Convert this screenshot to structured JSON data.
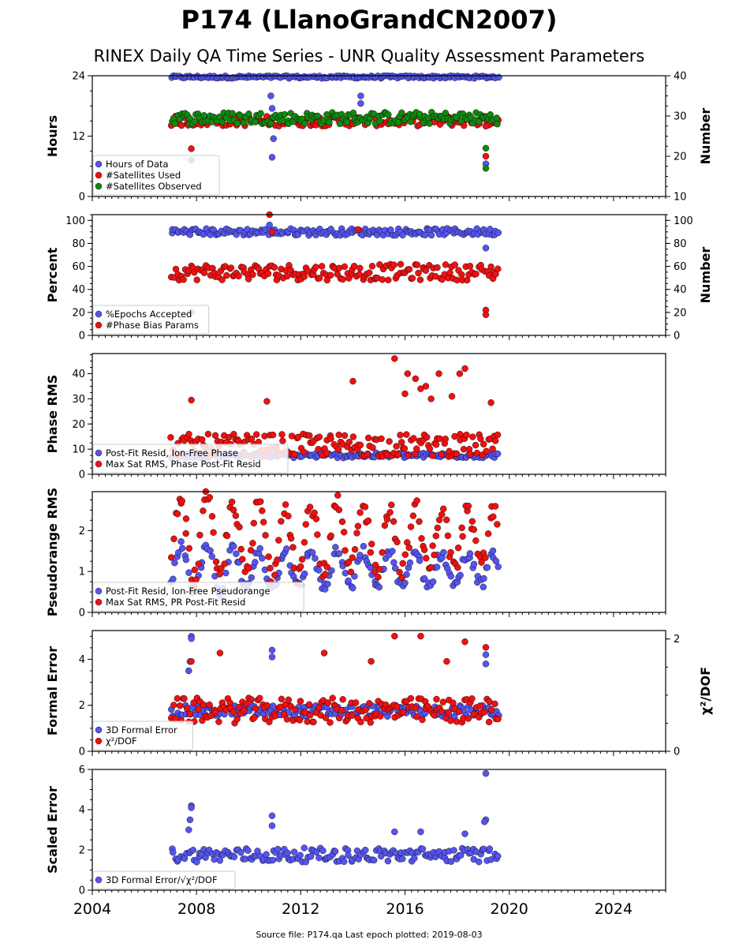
{
  "title": "P174 (LlanoGrandCN2007)",
  "subtitle": "RINEX Daily QA Time Series - UNR Quality Assessment Parameters",
  "footer": "Source file: P174.qa Last epoch plotted: 2019-08-03",
  "colors": {
    "blue": "#5555ee",
    "red": "#ee1111",
    "green": "#118811"
  },
  "chart_data": [
    {
      "type": "scatter",
      "ylabel": "Hours",
      "ylabel_right": "Number",
      "xlim": [
        2004,
        2026
      ],
      "ylim": [
        0,
        24
      ],
      "ylim_right": [
        10,
        40
      ],
      "yticks": [
        "0",
        "12",
        "24"
      ],
      "yticks_right": [
        "10",
        "20",
        "30",
        "40"
      ],
      "legend_location": "lower-left",
      "series": [
        {
          "name": "Hours of Data",
          "color": "blue",
          "axis": "left",
          "y_range": [
            23.5,
            24
          ],
          "outliers": [
            [
              2010.85,
              20
            ],
            [
              2010.9,
              17.5
            ],
            [
              2010.95,
              11.5
            ],
            [
              2010.9,
              7.8
            ],
            [
              2014.3,
              20
            ],
            [
              2014.3,
              18.5
            ],
            [
              2019.1,
              6.5
            ]
          ]
        },
        {
          "name": "#Satellites Used",
          "color": "red",
          "axis": "left",
          "y_range": [
            14,
            16
          ],
          "outliers": [
            [
              2007.8,
              9.5
            ],
            [
              2019.1,
              14
            ],
            [
              2019.1,
              8
            ]
          ]
        },
        {
          "name": "#Satellites Observed",
          "color": "green",
          "axis": "right",
          "y_range": [
            28,
            31
          ],
          "outliers": [
            [
              2007.8,
              19
            ],
            [
              2019.1,
              22
            ],
            [
              2019.1,
              17
            ]
          ]
        }
      ]
    },
    {
      "type": "scatter",
      "ylabel": "Percent",
      "ylabel_right": "Number",
      "xlim": [
        2004,
        2026
      ],
      "ylim": [
        0,
        105
      ],
      "ylim_right": [
        0,
        105
      ],
      "yticks": [
        "0",
        "20",
        "40",
        "60",
        "80",
        "100"
      ],
      "yticks_right": [
        "0",
        "20",
        "40",
        "60",
        "80",
        "100"
      ],
      "legend_location": "lower-left",
      "series": [
        {
          "name": "%Epochs Accepted",
          "color": "blue",
          "axis": "left",
          "y_range": [
            87,
            93
          ],
          "outliers": [
            [
              2019.1,
              76
            ],
            [
              2010.8,
              96
            ]
          ]
        },
        {
          "name": "#Phase Bias Params",
          "color": "red",
          "axis": "right",
          "y_range": [
            48,
            62
          ],
          "outliers": [
            [
              2010.8,
              105
            ],
            [
              2010.9,
              90
            ],
            [
              2014.2,
              92
            ],
            [
              2019.1,
              22
            ],
            [
              2019.1,
              18
            ],
            [
              2007.8,
              20
            ]
          ]
        }
      ]
    },
    {
      "type": "scatter",
      "ylabel": "Phase RMS",
      "xlim": [
        2004,
        2026
      ],
      "ylim": [
        0,
        48
      ],
      "yticks": [
        "0",
        "10",
        "20",
        "30",
        "40"
      ],
      "legend_location": "lower-left",
      "series": [
        {
          "name": "Post-Fit Resid, Ion-Free Phase",
          "color": "blue",
          "y_range": [
            6.5,
            8.5
          ],
          "outliers": []
        },
        {
          "name": "Max Sat RMS, Phase Post-Fit Resid",
          "color": "red",
          "y_range": [
            7,
            16
          ],
          "outliers": [
            [
              2007.8,
              29.5
            ],
            [
              2010.7,
              29
            ],
            [
              2014.0,
              37
            ],
            [
              2015.6,
              46
            ],
            [
              2016.0,
              32
            ],
            [
              2016.1,
              40
            ],
            [
              2016.4,
              38
            ],
            [
              2016.6,
              34
            ],
            [
              2016.8,
              35
            ],
            [
              2017.0,
              30
            ],
            [
              2017.3,
              40
            ],
            [
              2017.8,
              31
            ],
            [
              2018.1,
              40
            ],
            [
              2018.3,
              42
            ],
            [
              2019.3,
              28.5
            ]
          ]
        }
      ]
    },
    {
      "type": "scatter",
      "ylabel": "Pseudorange RMS",
      "xlim": [
        2004,
        2026
      ],
      "ylim": [
        0,
        2.95
      ],
      "yticks": [
        "0",
        "1",
        "2"
      ],
      "legend_location": "lower-left",
      "series": [
        {
          "name": "Post-Fit Resid, Ion-Free Pseudorange",
          "color": "blue",
          "seasonal": true,
          "y_range": [
            0.5,
            1.6
          ]
        },
        {
          "name": "Max Sat RMS, PR Post-Fit Resid",
          "color": "red",
          "seasonal": true,
          "y_range": [
            0.8,
            2.8
          ]
        }
      ]
    },
    {
      "type": "scatter",
      "ylabel": "Formal Error",
      "ylabel_right": "χ²/DOF",
      "xlim": [
        2004,
        2026
      ],
      "ylim": [
        0,
        5.25
      ],
      "ylim_right": [
        0,
        2.15
      ],
      "yticks": [
        "0",
        "2",
        "4"
      ],
      "yticks_right": [
        "0",
        "2"
      ],
      "legend_location": "lower-left",
      "series": [
        {
          "name": "3D Formal Error",
          "color": "blue",
          "axis": "left",
          "y_range": [
            1.5,
            2.0
          ],
          "outliers": [
            [
              2007.8,
              5.0
            ],
            [
              2007.8,
              4.9
            ],
            [
              2007.75,
              3.9
            ],
            [
              2007.7,
              3.5
            ],
            [
              2010.9,
              4.4
            ],
            [
              2010.9,
              4.1
            ],
            [
              2019.1,
              4.2
            ],
            [
              2019.1,
              3.8
            ]
          ]
        },
        {
          "name": "χ²/DOF",
          "color": "red",
          "axis": "right",
          "y_range": [
            0.5,
            0.95
          ],
          "outliers": [
            [
              2007.8,
              1.6
            ],
            [
              2008.9,
              1.75
            ],
            [
              2012.9,
              1.75
            ],
            [
              2015.6,
              2.05
            ],
            [
              2016.6,
              2.05
            ],
            [
              2018.3,
              1.95
            ],
            [
              2019.1,
              1.85
            ],
            [
              2014.7,
              1.6
            ],
            [
              2017.6,
              1.6
            ]
          ]
        }
      ]
    },
    {
      "type": "scatter",
      "ylabel": "Scaled Error",
      "xlim": [
        2004,
        2026
      ],
      "ylim": [
        0,
        6
      ],
      "yticks": [
        "0",
        "2",
        "4",
        "6"
      ],
      "xticks": [
        "2004",
        "2008",
        "2012",
        "2016",
        "2020",
        "2024"
      ],
      "legend_location": "lower-left",
      "series": [
        {
          "name": "3D Formal Error/√χ²/DOF",
          "color": "blue",
          "y_range": [
            1.4,
            2.1
          ],
          "outliers": [
            [
              2007.8,
              4.2
            ],
            [
              2007.8,
              4.1
            ],
            [
              2007.75,
              3.5
            ],
            [
              2007.7,
              3.0
            ],
            [
              2010.9,
              3.7
            ],
            [
              2010.9,
              3.2
            ],
            [
              2019.1,
              5.8
            ],
            [
              2019.1,
              3.5
            ],
            [
              2019.05,
              3.4
            ],
            [
              2015.6,
              2.9
            ],
            [
              2016.6,
              2.9
            ],
            [
              2018.3,
              2.8
            ]
          ]
        }
      ]
    }
  ]
}
